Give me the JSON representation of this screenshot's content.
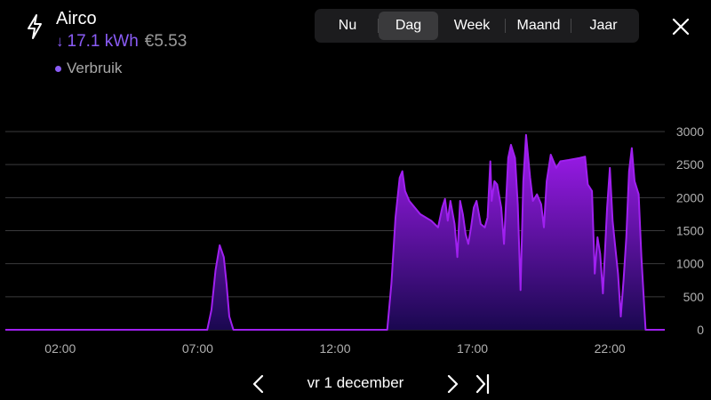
{
  "header": {
    "title": "Airco",
    "energy_value": "17.1 kWh",
    "cost_value": "€5.53",
    "legend_label": "Verbruik",
    "icon": "lightning-bolt-icon"
  },
  "tabs": [
    {
      "label": "Nu",
      "selected": false
    },
    {
      "label": "Dag",
      "selected": true
    },
    {
      "label": "Week",
      "selected": false
    },
    {
      "label": "Maand",
      "selected": false
    },
    {
      "label": "Jaar",
      "selected": false
    }
  ],
  "footer": {
    "date_label": "vr 1 december"
  },
  "colors": {
    "accent": "#8a5cf6",
    "series": "#a020f0",
    "background": "#000000"
  },
  "chart_data": {
    "type": "area",
    "x_tick_labels": [
      "02:00",
      "07:00",
      "12:00",
      "17:00",
      "22:00"
    ],
    "x_tick_hours": [
      2,
      7,
      12,
      17,
      22
    ],
    "xlim": [
      0,
      24
    ],
    "ylim": [
      0,
      3000
    ],
    "y_ticks": [
      0,
      500,
      1000,
      1500,
      2000,
      2500,
      3000
    ],
    "grid": true,
    "series": [
      {
        "values": [
          [
            0,
            0
          ],
          [
            7.35,
            0
          ],
          [
            7.5,
            300
          ],
          [
            7.65,
            900
          ],
          [
            7.8,
            1280
          ],
          [
            7.95,
            1100
          ],
          [
            8.05,
            700
          ],
          [
            8.15,
            200
          ],
          [
            8.3,
            0
          ],
          [
            13.9,
            0
          ],
          [
            14.05,
            700
          ],
          [
            14.2,
            1700
          ],
          [
            14.35,
            2300
          ],
          [
            14.45,
            2400
          ],
          [
            14.55,
            2100
          ],
          [
            14.7,
            1950
          ],
          [
            14.9,
            1850
          ],
          [
            15.1,
            1750
          ],
          [
            15.3,
            1700
          ],
          [
            15.5,
            1650
          ],
          [
            15.75,
            1550
          ],
          [
            15.9,
            1850
          ],
          [
            16.0,
            1980
          ],
          [
            16.1,
            1650
          ],
          [
            16.2,
            1950
          ],
          [
            16.35,
            1600
          ],
          [
            16.45,
            1100
          ],
          [
            16.55,
            1950
          ],
          [
            16.65,
            1750
          ],
          [
            16.75,
            1450
          ],
          [
            16.85,
            1300
          ],
          [
            16.95,
            1550
          ],
          [
            17.05,
            1850
          ],
          [
            17.15,
            1950
          ],
          [
            17.3,
            1600
          ],
          [
            17.45,
            1550
          ],
          [
            17.55,
            1700
          ],
          [
            17.65,
            2550
          ],
          [
            17.7,
            1950
          ],
          [
            17.8,
            2250
          ],
          [
            17.9,
            2200
          ],
          [
            18.05,
            1850
          ],
          [
            18.15,
            1300
          ],
          [
            18.3,
            2600
          ],
          [
            18.4,
            2800
          ],
          [
            18.55,
            2600
          ],
          [
            18.65,
            1900
          ],
          [
            18.75,
            600
          ],
          [
            18.85,
            2250
          ],
          [
            18.95,
            2950
          ],
          [
            19.1,
            2300
          ],
          [
            19.2,
            1950
          ],
          [
            19.35,
            2050
          ],
          [
            19.5,
            1900
          ],
          [
            19.6,
            1550
          ],
          [
            19.7,
            2250
          ],
          [
            19.85,
            2650
          ],
          [
            19.95,
            2550
          ],
          [
            20.05,
            2450
          ],
          [
            20.2,
            2550
          ],
          [
            20.5,
            2570
          ],
          [
            20.9,
            2600
          ],
          [
            21.1,
            2620
          ],
          [
            21.2,
            2200
          ],
          [
            21.35,
            2100
          ],
          [
            21.45,
            850
          ],
          [
            21.55,
            1400
          ],
          [
            21.65,
            1150
          ],
          [
            21.75,
            550
          ],
          [
            21.9,
            1850
          ],
          [
            22.0,
            2450
          ],
          [
            22.1,
            1650
          ],
          [
            22.2,
            1250
          ],
          [
            22.3,
            850
          ],
          [
            22.4,
            200
          ],
          [
            22.5,
            750
          ],
          [
            22.6,
            1400
          ],
          [
            22.7,
            2400
          ],
          [
            22.8,
            2750
          ],
          [
            22.9,
            2250
          ],
          [
            23.05,
            2050
          ],
          [
            23.15,
            1100
          ],
          [
            23.3,
            0
          ],
          [
            24,
            0
          ]
        ]
      }
    ]
  }
}
